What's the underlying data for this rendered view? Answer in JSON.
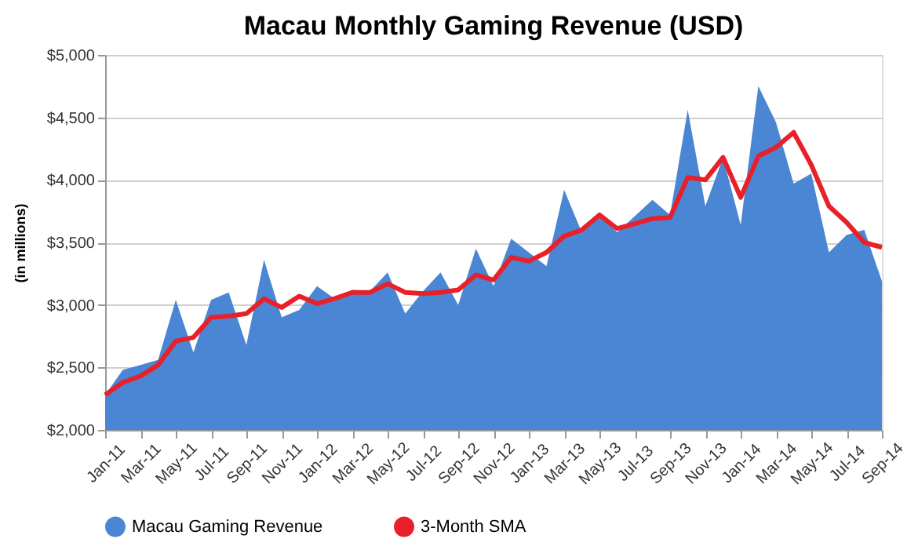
{
  "chart_data": {
    "type": "area",
    "title": "Macau Monthly Gaming Revenue (USD)",
    "ylabel": "(in millions)",
    "categories": [
      "Jan-11",
      null,
      "Mar-11",
      null,
      "May-11",
      null,
      "Jul-11",
      null,
      "Sep-11",
      null,
      "Nov-11",
      null,
      "Jan-12",
      null,
      "Mar-12",
      null,
      "May-12",
      null,
      "Jul-12",
      null,
      "Sep-12",
      null,
      "Nov-12",
      null,
      "Jan-13",
      null,
      "Mar-13",
      null,
      "May-13",
      null,
      "Jul-13",
      null,
      "Sep-13",
      null,
      "Nov-13",
      null,
      "Jan-14",
      null,
      "Mar-14",
      null,
      "May-14",
      null,
      "Jul-14",
      null,
      "Sep-14"
    ],
    "series": [
      {
        "name": "Macau Gaming Revenue",
        "type": "area",
        "color": "#4a86d4",
        "values": [
          2280,
          2480,
          2520,
          2560,
          3040,
          2620,
          3040,
          3100,
          2680,
          3360,
          2900,
          2960,
          3150,
          3050,
          3120,
          3110,
          3260,
          2930,
          3110,
          3260,
          3000,
          3450,
          3150,
          3530,
          3420,
          3310,
          3920,
          3580,
          3720,
          3580,
          3710,
          3840,
          3720,
          4560,
          3790,
          4180,
          3640,
          4750,
          4460,
          3970,
          4050,
          3420,
          3560,
          3600,
          3190
        ]
      },
      {
        "name": "3-Month SMA",
        "type": "line",
        "color": "#e8202a",
        "values": [
          2280,
          2380,
          2430,
          2520,
          2710,
          2740,
          2900,
          2910,
          2930,
          3050,
          2980,
          3070,
          3010,
          3050,
          3100,
          3100,
          3170,
          3100,
          3090,
          3100,
          3120,
          3240,
          3200,
          3380,
          3350,
          3420,
          3550,
          3600,
          3720,
          3610,
          3650,
          3690,
          3700,
          4020,
          4000,
          4180,
          3860,
          4190,
          4260,
          4380,
          4120,
          3790,
          3660,
          3500,
          3460
        ]
      }
    ],
    "ylim": [
      2000,
      5000
    ],
    "yticks": [
      {
        "value": 2000,
        "label": "$2,000"
      },
      {
        "value": 2500,
        "label": "$2,500"
      },
      {
        "value": 3000,
        "label": "$3,000"
      },
      {
        "value": 3500,
        "label": "$3,500"
      },
      {
        "value": 4000,
        "label": "$4,000"
      },
      {
        "value": 4500,
        "label": "$4,500"
      },
      {
        "value": 5000,
        "label": "$5,000"
      }
    ],
    "grid": "y",
    "legend": "bottom",
    "line_style": "solid",
    "marker": "none"
  }
}
